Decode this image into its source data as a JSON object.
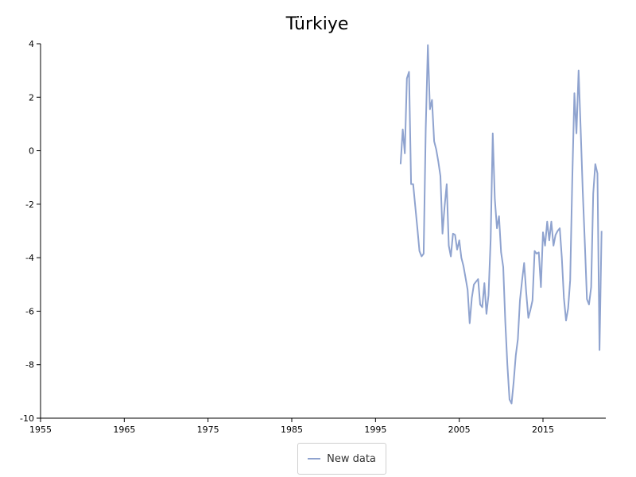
{
  "chart_data": {
    "type": "line",
    "title": "Türkiye",
    "xlabel": "",
    "ylabel": "",
    "xlim": [
      1955,
      2022.5
    ],
    "ylim": [
      -10,
      4
    ],
    "x_ticks": [
      "1955",
      "1965",
      "1975",
      "1985",
      "1995",
      "2005",
      "2015"
    ],
    "y_ticks": [
      "4",
      "2",
      "0",
      "-2",
      "-4",
      "-6",
      "-8",
      "-10"
    ],
    "grid": false,
    "legend_position": "bottom-center",
    "series": [
      {
        "name": "New data",
        "color": "#8fa3cf",
        "x": [
          1998.0,
          1998.25,
          1998.5,
          1998.75,
          1999.0,
          1999.25,
          1999.5,
          1999.75,
          2000.0,
          2000.25,
          2000.5,
          2000.75,
          2001.0,
          2001.25,
          2001.5,
          2001.75,
          2002.0,
          2002.25,
          2002.5,
          2002.75,
          2003.0,
          2003.25,
          2003.5,
          2003.75,
          2004.0,
          2004.25,
          2004.5,
          2004.75,
          2005.0,
          2005.25,
          2005.5,
          2005.75,
          2006.0,
          2006.25,
          2006.5,
          2006.75,
          2007.0,
          2007.25,
          2007.5,
          2007.75,
          2008.0,
          2008.25,
          2008.5,
          2008.75,
          2009.0,
          2009.25,
          2009.5,
          2009.75,
          2010.0,
          2010.25,
          2010.5,
          2010.75,
          2011.0,
          2011.25,
          2011.5,
          2011.75,
          2012.0,
          2012.25,
          2012.5,
          2012.75,
          2013.0,
          2013.25,
          2013.5,
          2013.75,
          2014.0,
          2014.25,
          2014.5,
          2014.75,
          2015.0,
          2015.25,
          2015.5,
          2015.75,
          2016.0,
          2016.25,
          2016.5,
          2016.75,
          2017.0,
          2017.25,
          2017.5,
          2017.75,
          2018.0,
          2018.25,
          2018.5,
          2018.75,
          2019.0,
          2019.25,
          2019.5,
          2019.75,
          2020.0,
          2020.25,
          2020.5,
          2020.75,
          2021.0,
          2021.25,
          2021.5,
          2021.75,
          2022.0
        ],
        "values": [
          -0.5,
          0.8,
          -0.1,
          2.7,
          2.95,
          -1.25,
          -1.25,
          -2.1,
          -2.9,
          -3.75,
          -3.95,
          -3.85,
          0.8,
          3.95,
          1.55,
          1.9,
          0.35,
          0.05,
          -0.4,
          -0.95,
          -3.1,
          -2.1,
          -1.25,
          -3.55,
          -3.95,
          -3.1,
          -3.15,
          -3.7,
          -3.35,
          -4.0,
          -4.3,
          -4.75,
          -5.2,
          -6.45,
          -5.5,
          -5.0,
          -4.9,
          -4.8,
          -5.75,
          -5.85,
          -4.95,
          -6.1,
          -5.4,
          -3.3,
          0.65,
          -1.8,
          -2.9,
          -2.45,
          -3.8,
          -4.35,
          -6.4,
          -8.0,
          -9.3,
          -9.45,
          -8.65,
          -7.65,
          -7.05,
          -5.6,
          -4.85,
          -4.2,
          -5.3,
          -6.25,
          -5.95,
          -5.6,
          -3.75,
          -3.85,
          -3.8,
          -5.1,
          -3.05,
          -3.55,
          -2.65,
          -3.35,
          -2.65,
          -3.55,
          -3.15,
          -3.0,
          -2.9,
          -4.0,
          -5.5,
          -6.35,
          -5.9,
          -4.85,
          -1.0,
          2.15,
          0.65,
          3.0,
          0.8,
          -1.5,
          -3.5,
          -5.55,
          -5.75,
          -5.1,
          -1.6,
          -0.5,
          -0.85,
          -7.45,
          -3.0
        ]
      }
    ]
  }
}
